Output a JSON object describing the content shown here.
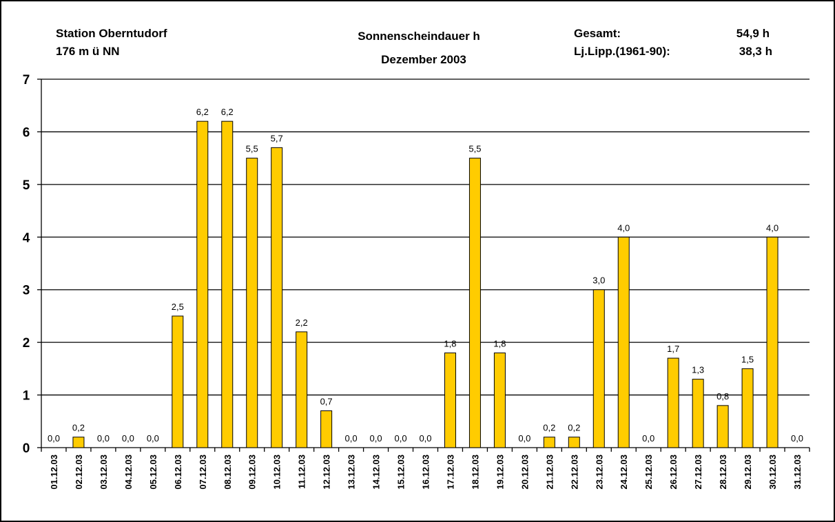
{
  "chart_data": {
    "type": "bar",
    "title": "Sonnenscheindauer h",
    "subtitle": "Dezember 2003",
    "annotations": [
      "Station Oberntudorf",
      "176 m ü NN",
      "Gesamt:",
      "54,9 h",
      "Lj.Lipp.(1961-90):",
      "38,3 h"
    ],
    "categories": [
      "01.12.03",
      "02.12.03",
      "03.12.03",
      "04.12.03",
      "05.12.03",
      "06.12.03",
      "07.12.03",
      "08.12.03",
      "09.12.03",
      "10.12.03",
      "11.12.03",
      "12.12.03",
      "13.12.03",
      "14.12.03",
      "15.12.03",
      "16.12.03",
      "17.12.03",
      "18.12.03",
      "19.12.03",
      "20.12.03",
      "21.12.03",
      "22.12.03",
      "23.12.03",
      "24.12.03",
      "25.12.03",
      "26.12.03",
      "27.12.03",
      "28.12.03",
      "29.12.03",
      "30.12.03",
      "31.12.03"
    ],
    "values": [
      0,
      0.2,
      0,
      0,
      0,
      2.5,
      6.2,
      6.2,
      5.5,
      5.7,
      2.2,
      0.7,
      0,
      0,
      0,
      0,
      1.8,
      5.5,
      1.8,
      0,
      0.2,
      0.2,
      3.0,
      4.0,
      0,
      1.7,
      1.3,
      0.8,
      1.5,
      4.0,
      0
    ],
    "value_labels": [
      "0,0",
      "0,2",
      "0,0",
      "0,0",
      "0,0",
      "2,5",
      "6,2",
      "6,2",
      "5,5",
      "5,7",
      "2,2",
      "0,7",
      "0,0",
      "0,0",
      "0,0",
      "0,0",
      "1,8",
      "5,5",
      "1,8",
      "0,0",
      "0,2",
      "0,2",
      "3,0",
      "4,0",
      "0,0",
      "1,7",
      "1,3",
      "0,8",
      "1,5",
      "4,0",
      "0,0"
    ],
    "color": "#ffcc00",
    "ylim": [
      0,
      7
    ],
    "yticks": [
      0,
      1,
      2,
      3,
      4,
      5,
      6,
      7
    ],
    "grid": true
  }
}
